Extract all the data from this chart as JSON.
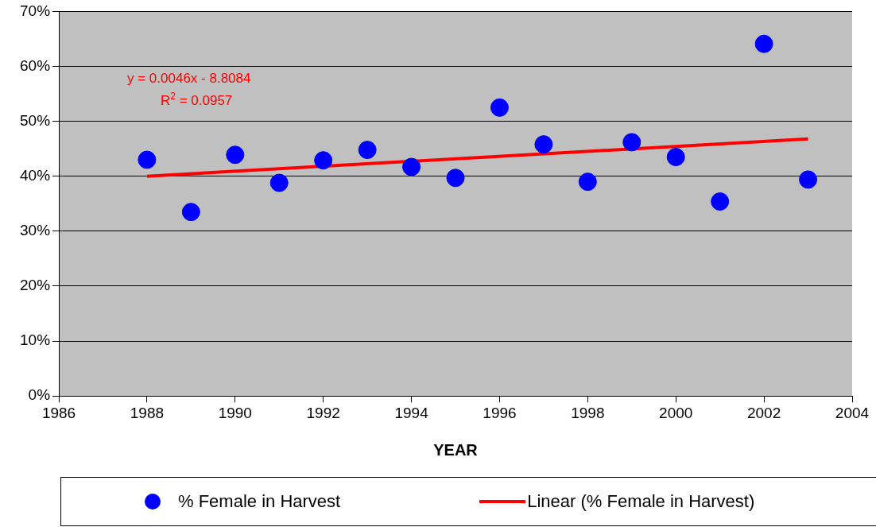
{
  "chart_data": {
    "type": "scatter",
    "xlabel": "YEAR",
    "x": [
      1988,
      1989,
      1990,
      1991,
      1992,
      1993,
      1994,
      1995,
      1996,
      1997,
      1998,
      1999,
      2000,
      2001,
      2002,
      2003
    ],
    "series": [
      {
        "name": "% Female in Harvest",
        "color": "#0000ff",
        "marker": "circle",
        "values": [
          43,
          33.5,
          43.9,
          38.8,
          42.9,
          44.8,
          41.7,
          39.7,
          52.5,
          45.8,
          39,
          46.2,
          43.5,
          35.4,
          64.1,
          39.4
        ]
      },
      {
        "name": "Linear (% Female in Harvest)",
        "type": "line",
        "color": "#ff0000",
        "marker": "none",
        "x": [
          1988,
          2003
        ],
        "values": [
          40,
          46.8
        ]
      }
    ],
    "xlim": [
      1986,
      2004
    ],
    "xticks": [
      1986,
      1988,
      1990,
      1992,
      1994,
      1996,
      1998,
      2000,
      2002,
      2004
    ],
    "ylim": [
      0,
      70
    ],
    "yticks": [
      {
        "value": 0,
        "label": "0%"
      },
      {
        "value": 10,
        "label": "10%"
      },
      {
        "value": 20,
        "label": "20%"
      },
      {
        "value": 30,
        "label": "30%"
      },
      {
        "value": 40,
        "label": "40%"
      },
      {
        "value": 50,
        "label": "50%"
      },
      {
        "value": 60,
        "label": "60%"
      },
      {
        "value": 70,
        "label": "70%"
      }
    ],
    "annotations": [
      "y = 0.0046x - 8.8084",
      "R$^{2}$ = 0.0957"
    ],
    "grid": "y",
    "legend": "bottom",
    "line_style": "solid"
  }
}
